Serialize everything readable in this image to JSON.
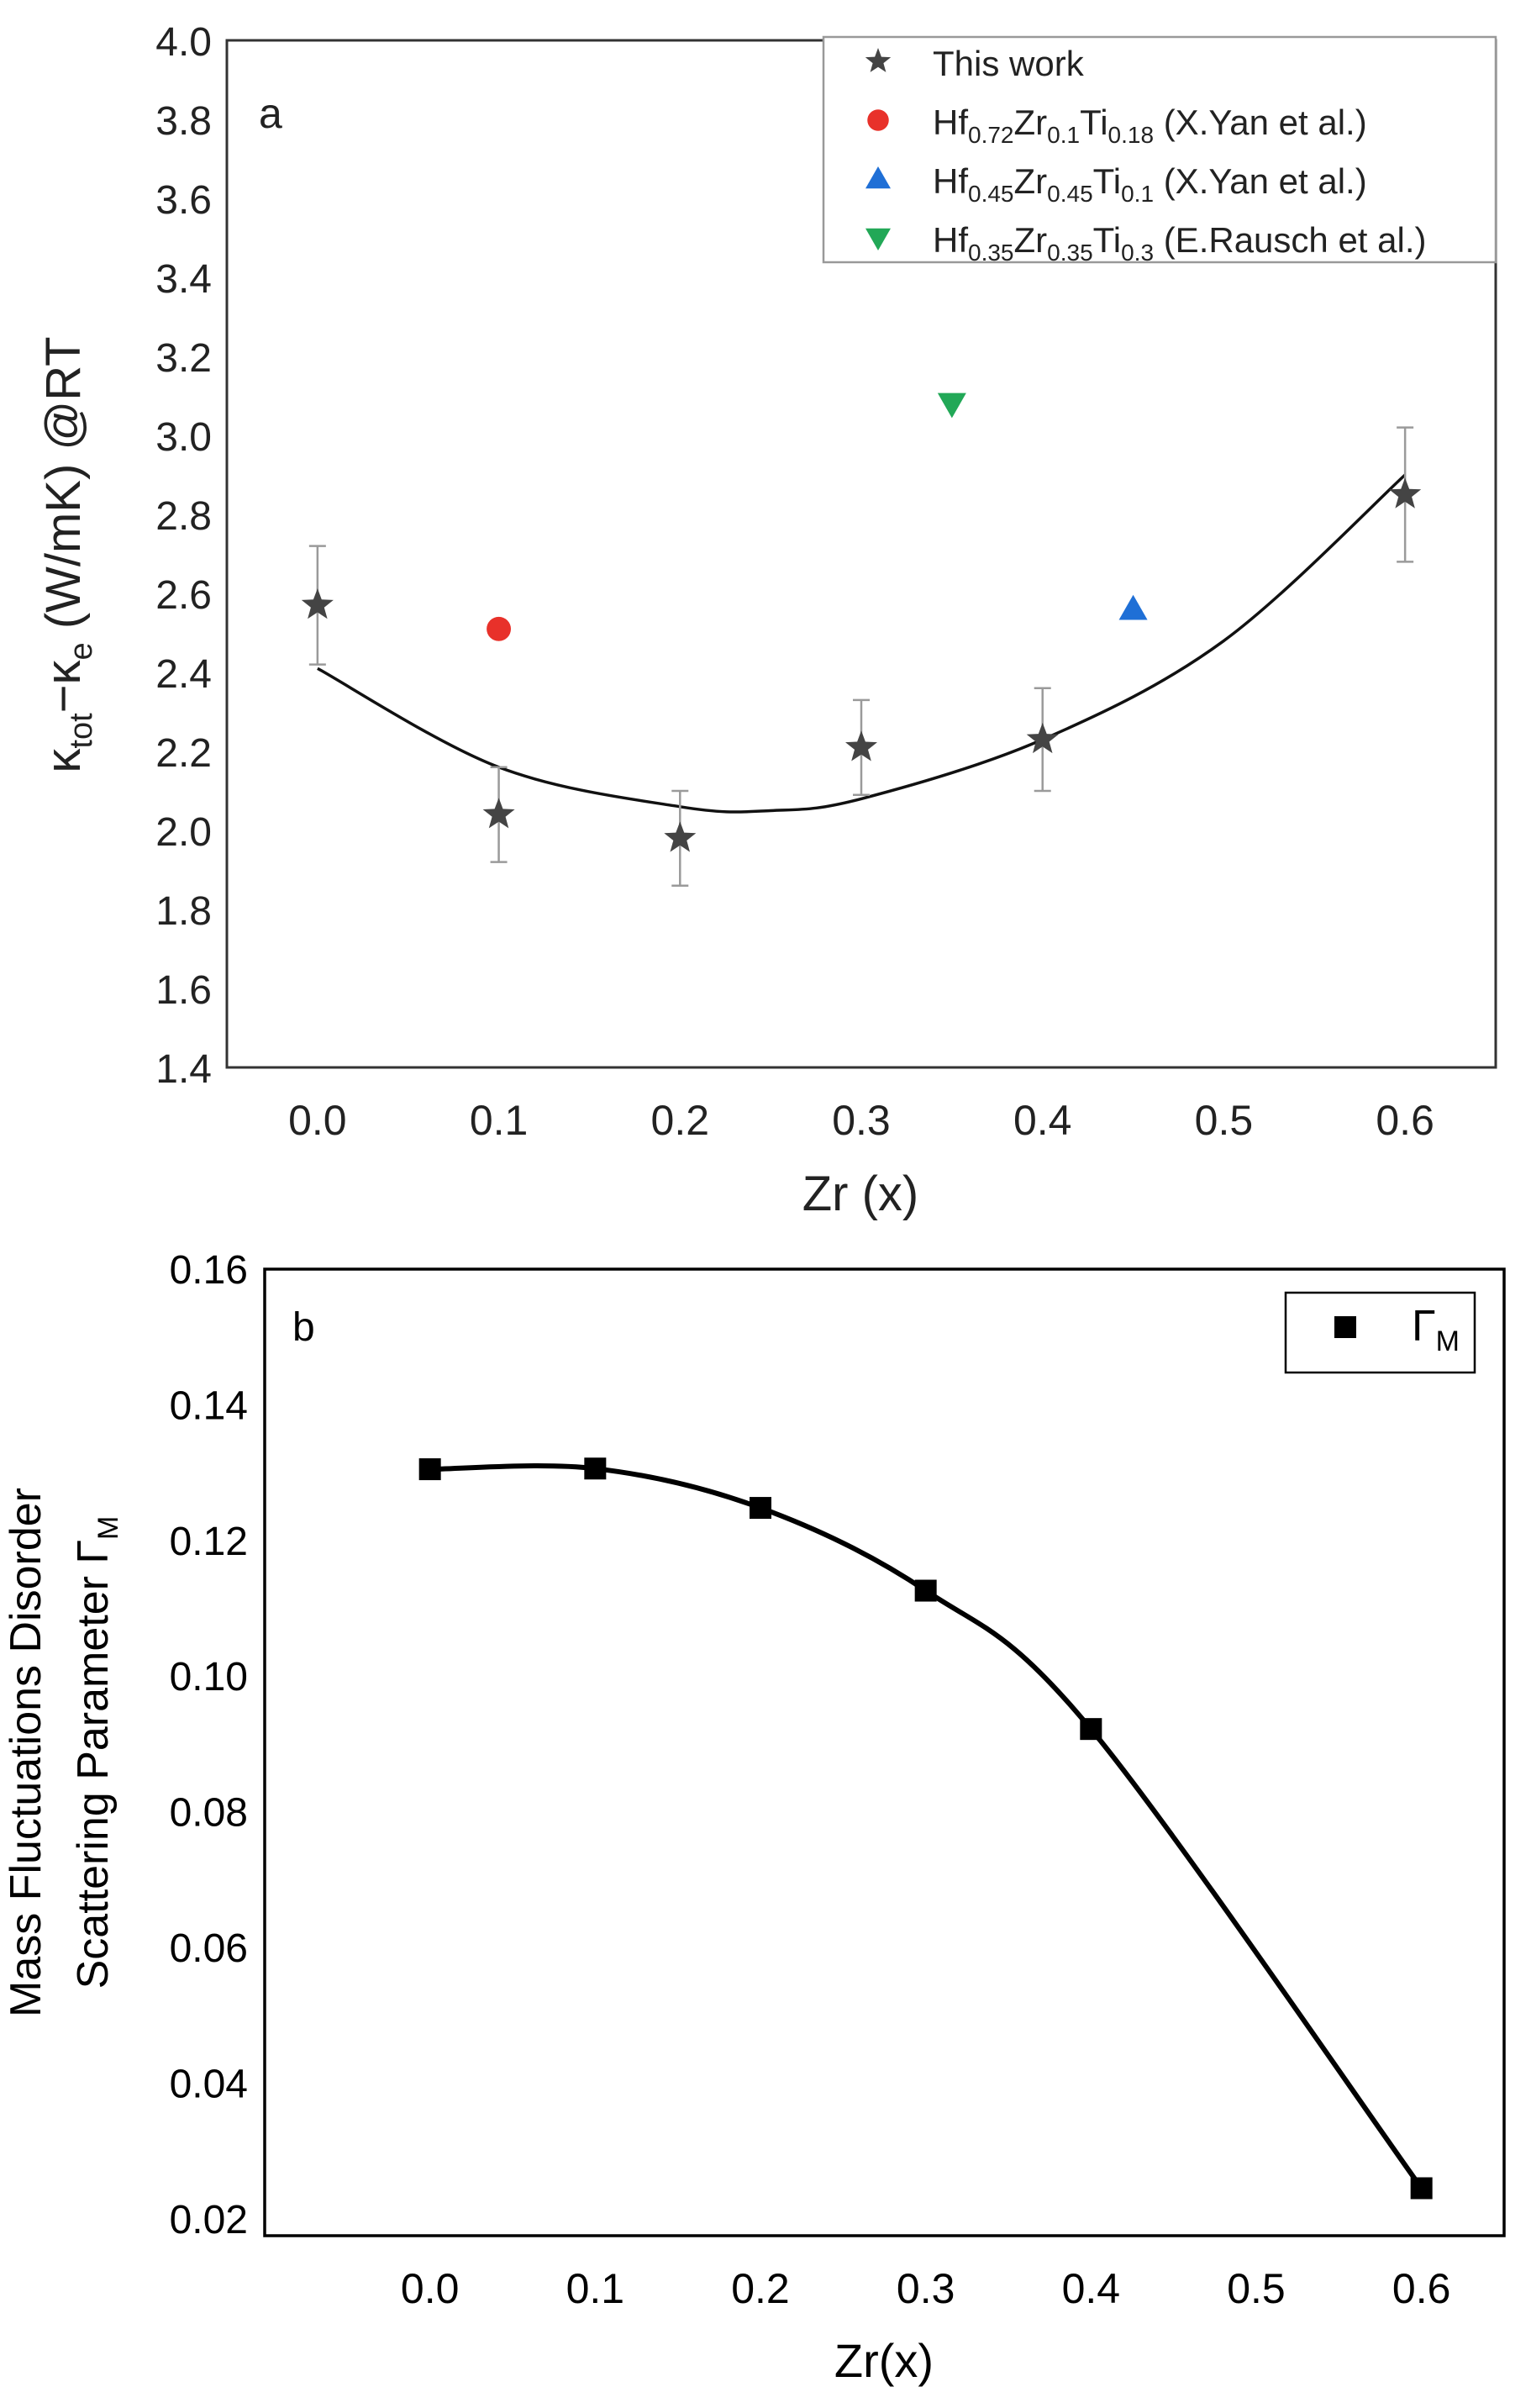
{
  "chart_data": [
    {
      "panel_label": "a",
      "type": "scatter",
      "xlabel": "Zr (x)",
      "ylabel_parts": [
        "κ",
        "tot",
        "−κ",
        "e",
        " (W/mK) @RT"
      ],
      "xlim": [
        -0.05,
        0.65
      ],
      "ylim": [
        1.4,
        4.0
      ],
      "xticks": [
        0.0,
        0.1,
        0.2,
        0.3,
        0.4,
        0.5,
        0.6
      ],
      "xtick_labels": [
        "0.0",
        "0.1",
        "0.2",
        "0.3",
        "0.4",
        "0.5",
        "0.6"
      ],
      "yticks": [
        1.4,
        1.6,
        1.8,
        2.0,
        2.2,
        2.4,
        2.6,
        2.8,
        3.0,
        3.2,
        3.4,
        3.6,
        3.8,
        4.0
      ],
      "ytick_labels": [
        "1.4",
        "1.6",
        "1.8",
        "2.0",
        "2.2",
        "2.4",
        "2.6",
        "2.8",
        "3.0",
        "3.2",
        "3.4",
        "3.6",
        "3.8",
        "4.0"
      ],
      "series": [
        {
          "name": "This work",
          "marker": "star",
          "color": "#444444",
          "x": [
            0.0,
            0.1,
            0.2,
            0.3,
            0.4,
            0.6
          ],
          "y": [
            2.57,
            2.04,
            1.98,
            2.21,
            2.23,
            2.85
          ],
          "error": [
            0.15,
            0.12,
            0.12,
            0.12,
            0.13,
            0.17
          ]
        },
        {
          "name": "Hf0.72Zr0.1Ti0.18 (X.Yan et al.)",
          "marker": "circle",
          "color": "#e8312a",
          "x": [
            0.1
          ],
          "y": [
            2.51
          ]
        },
        {
          "name": "Hf0.45Zr0.45Ti0.1 (X.Yan et al.)",
          "marker": "triangle-up",
          "color": "#1f6fd6",
          "x": [
            0.45
          ],
          "y": [
            2.56
          ]
        },
        {
          "name": "Hf0.35Zr0.35Ti0.3 (E.Rausch et al.)",
          "marker": "triangle-down",
          "color": "#22a857",
          "x": [
            0.35
          ],
          "y": [
            3.08
          ]
        }
      ],
      "fit_curve": {
        "x": [
          0.0,
          0.1,
          0.2,
          0.25,
          0.3,
          0.4,
          0.5,
          0.6
        ],
        "y": [
          2.41,
          2.16,
          2.06,
          2.05,
          2.08,
          2.23,
          2.48,
          2.9
        ]
      },
      "legend": [
        {
          "prefix": "This work",
          "parts": []
        },
        {
          "prefix": "Hf",
          "parts": [
            [
              "0.72",
              "Zr"
            ],
            [
              "0.1",
              "Ti"
            ],
            [
              "0.18",
              " (X.Yan et al.)"
            ]
          ]
        },
        {
          "prefix": "Hf",
          "parts": [
            [
              "0.45",
              "Zr"
            ],
            [
              "0.45",
              "Ti"
            ],
            [
              "0.1",
              " (X.Yan et al.)"
            ]
          ]
        },
        {
          "prefix": "Hf",
          "parts": [
            [
              "0.35",
              "Zr"
            ],
            [
              "0.35",
              "Ti"
            ],
            [
              "0.3",
              " (E.Rausch et al.)"
            ]
          ]
        }
      ],
      "legend_position": "top-right"
    },
    {
      "panel_label": "b",
      "type": "line",
      "xlabel": "Zr(x)",
      "ylabel_line1": "Mass Fluctuations Disorder",
      "ylabel_line2_text": "Scattering Parameter Γ",
      "ylabel_line2_sub": "M",
      "xlim": [
        -0.1,
        0.65
      ],
      "ylim": [
        0.0175,
        0.16
      ],
      "xticks": [
        0.0,
        0.1,
        0.2,
        0.3,
        0.4,
        0.5,
        0.6
      ],
      "xtick_labels": [
        "0.0",
        "0.1",
        "0.2",
        "0.3",
        "0.4",
        "0.5",
        "0.6"
      ],
      "yticks": [
        0.02,
        0.04,
        0.06,
        0.08,
        0.1,
        0.12,
        0.14,
        0.16
      ],
      "ytick_labels": [
        "0.02",
        "0.04",
        "0.06",
        "0.08",
        "0.10",
        "0.12",
        "0.14",
        "0.16"
      ],
      "series": [
        {
          "name": "ΓM",
          "marker": "square",
          "color": "#000000",
          "x": [
            0.0,
            0.1,
            0.2,
            0.3,
            0.4,
            0.6
          ],
          "y": [
            0.1305,
            0.1306,
            0.1248,
            0.1126,
            0.0922,
            0.0245
          ]
        }
      ],
      "legend_text": "Γ",
      "legend_sub": "M",
      "legend_position": "top-right"
    }
  ]
}
